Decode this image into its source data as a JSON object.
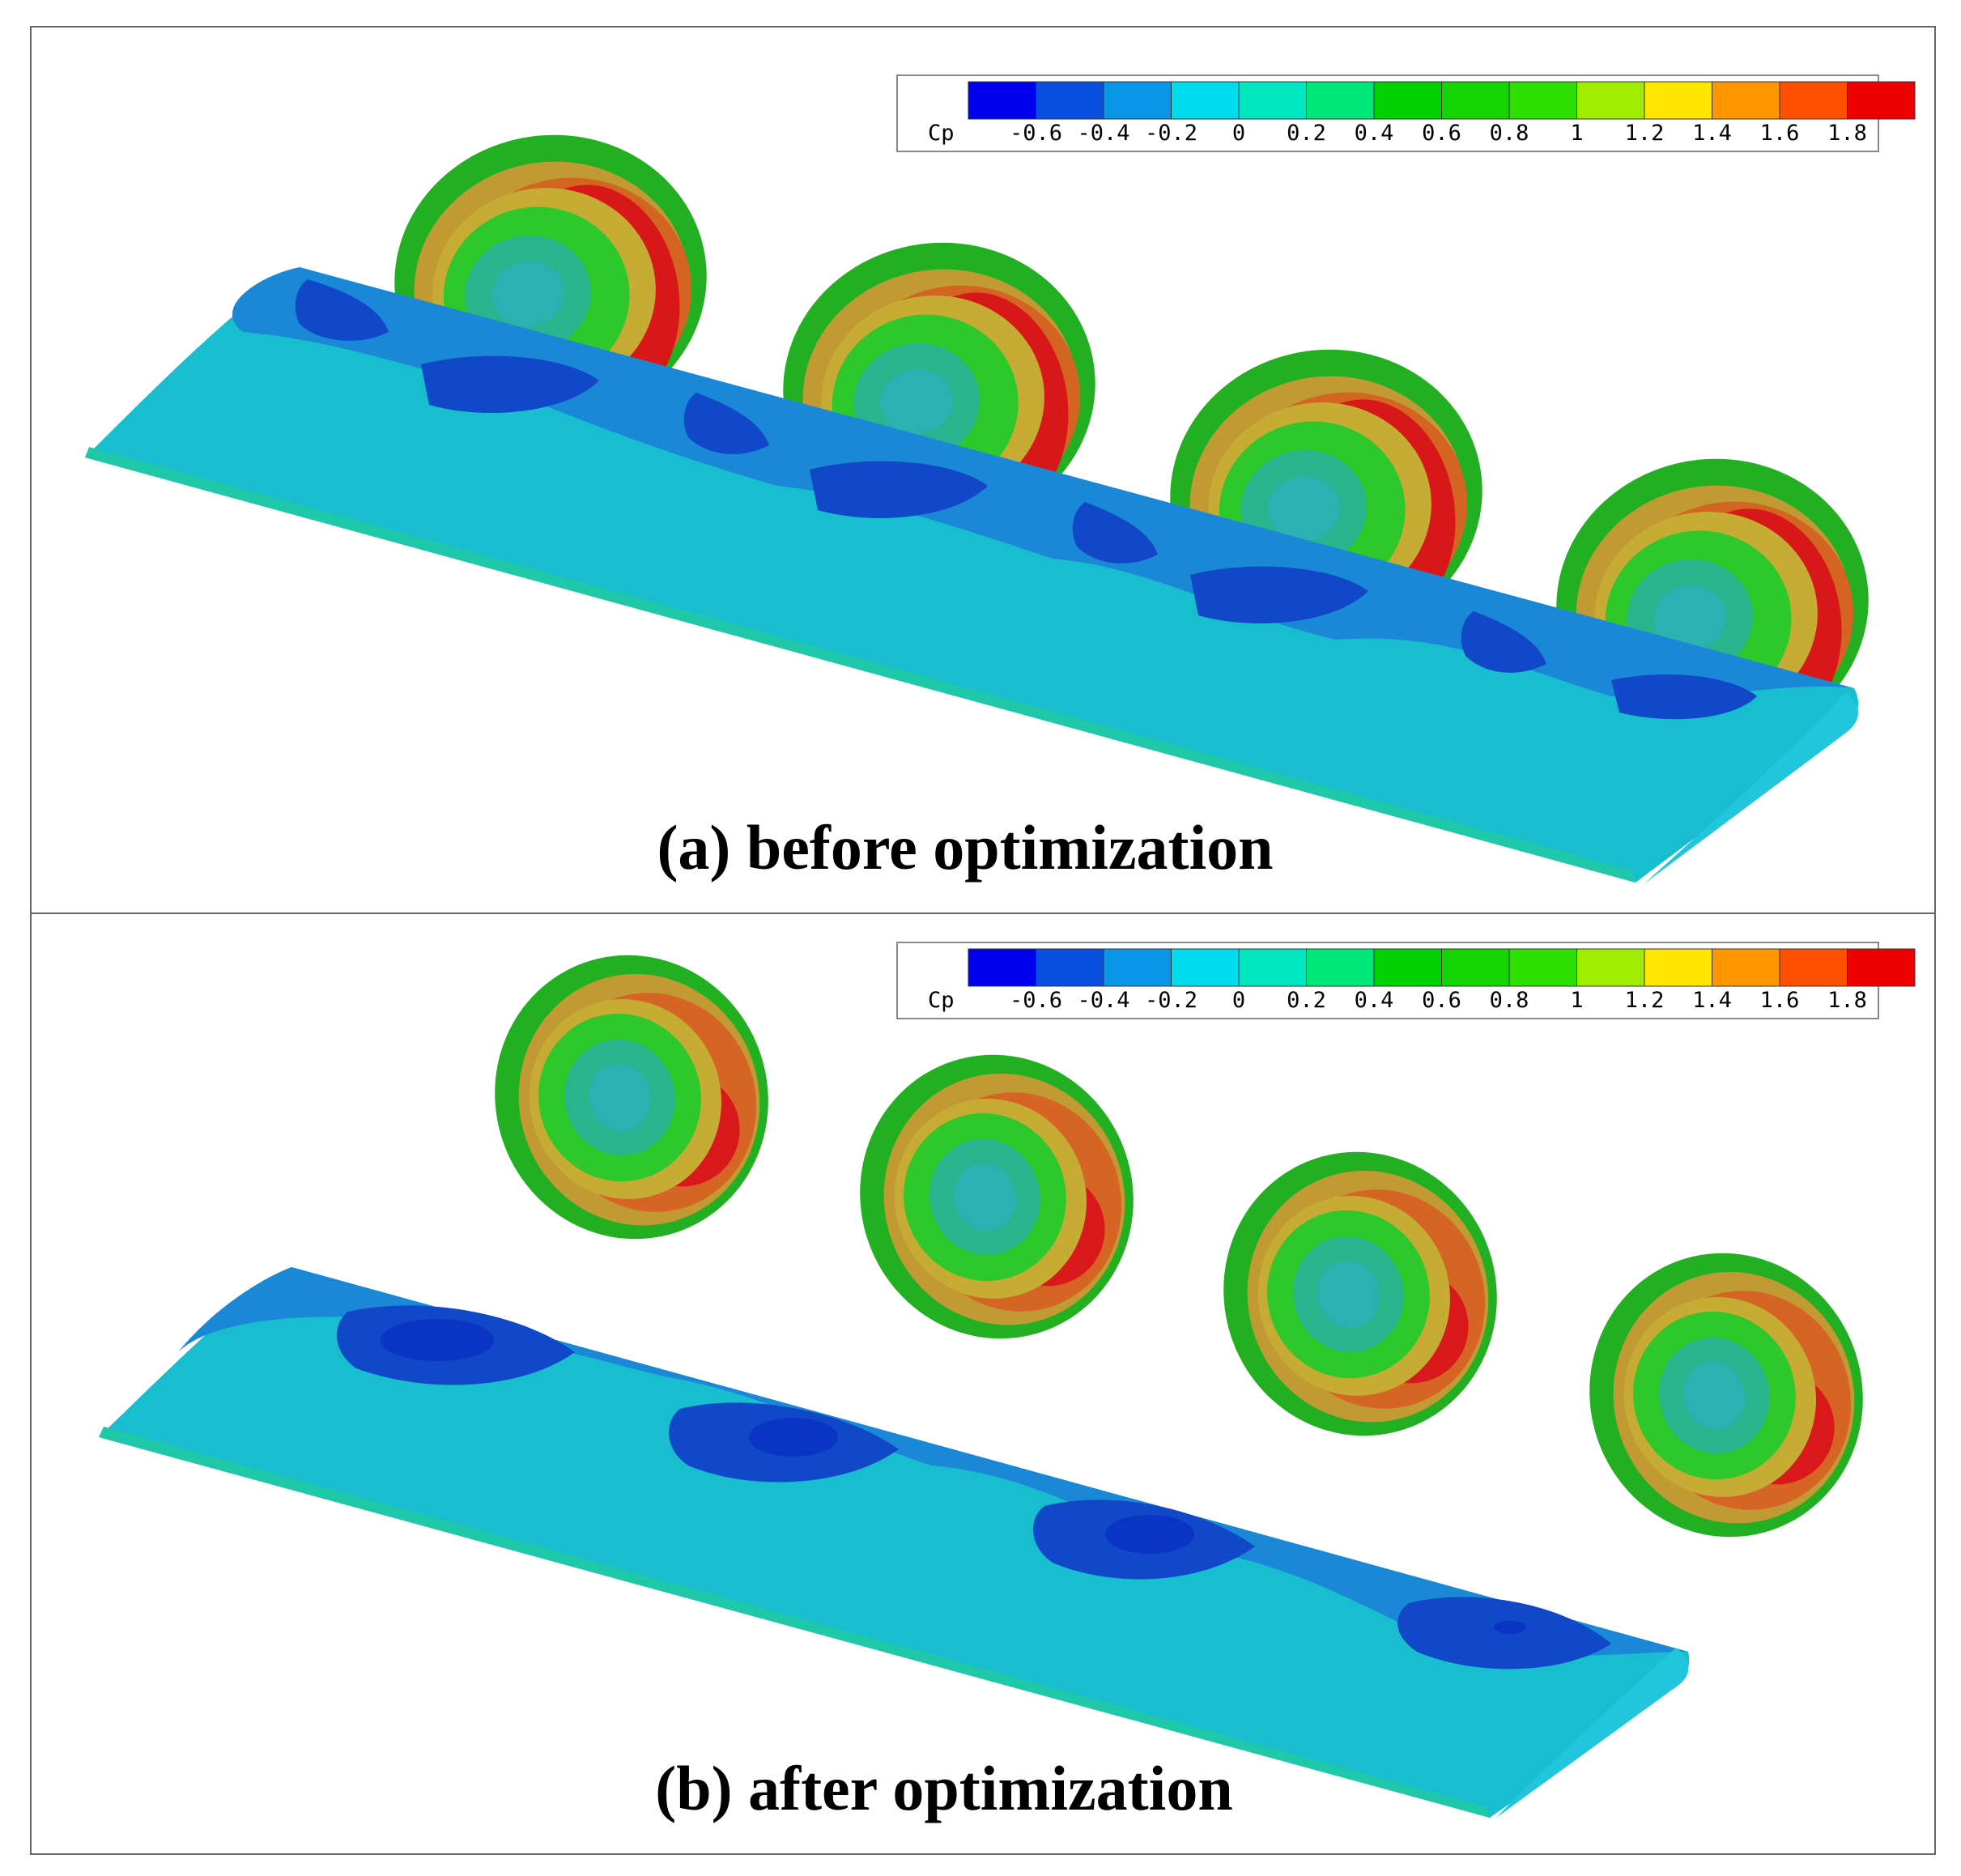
{
  "panels": [
    {
      "id": "a",
      "caption": "(a) before optimization",
      "rotor_disks": 4
    },
    {
      "id": "b",
      "caption": "(b) after optimization",
      "rotor_disks": 4
    }
  ],
  "colorbar": {
    "title": "Cp",
    "ticks": [
      "-0.6",
      "-0.4",
      "-0.2",
      "0",
      "0.2",
      "0.4",
      "0.6",
      "0.8",
      "1",
      "1.2",
      "1.4",
      "1.6",
      "1.8"
    ],
    "colors": [
      "#0000ee",
      "#0a50e0",
      "#0a96e6",
      "#00dcee",
      "#00e6c0",
      "#00e67a",
      "#00d200",
      "#16d400",
      "#2ee000",
      "#a0ec00",
      "#ffe600",
      "#ff9600",
      "#ff5000",
      "#ee0000"
    ]
  },
  "colors": {
    "wing_light": "#18bed0",
    "wing_mid": "#1a8ed8",
    "wing_dark": "#1040cc",
    "wing_edge": "#1ec8a8",
    "disk_outer": "#20b020",
    "disk_orange": "#d66a22",
    "disk_red": "#d8101a",
    "disk_yellow": "#b8a822",
    "disk_center": "#2ab0b0"
  }
}
